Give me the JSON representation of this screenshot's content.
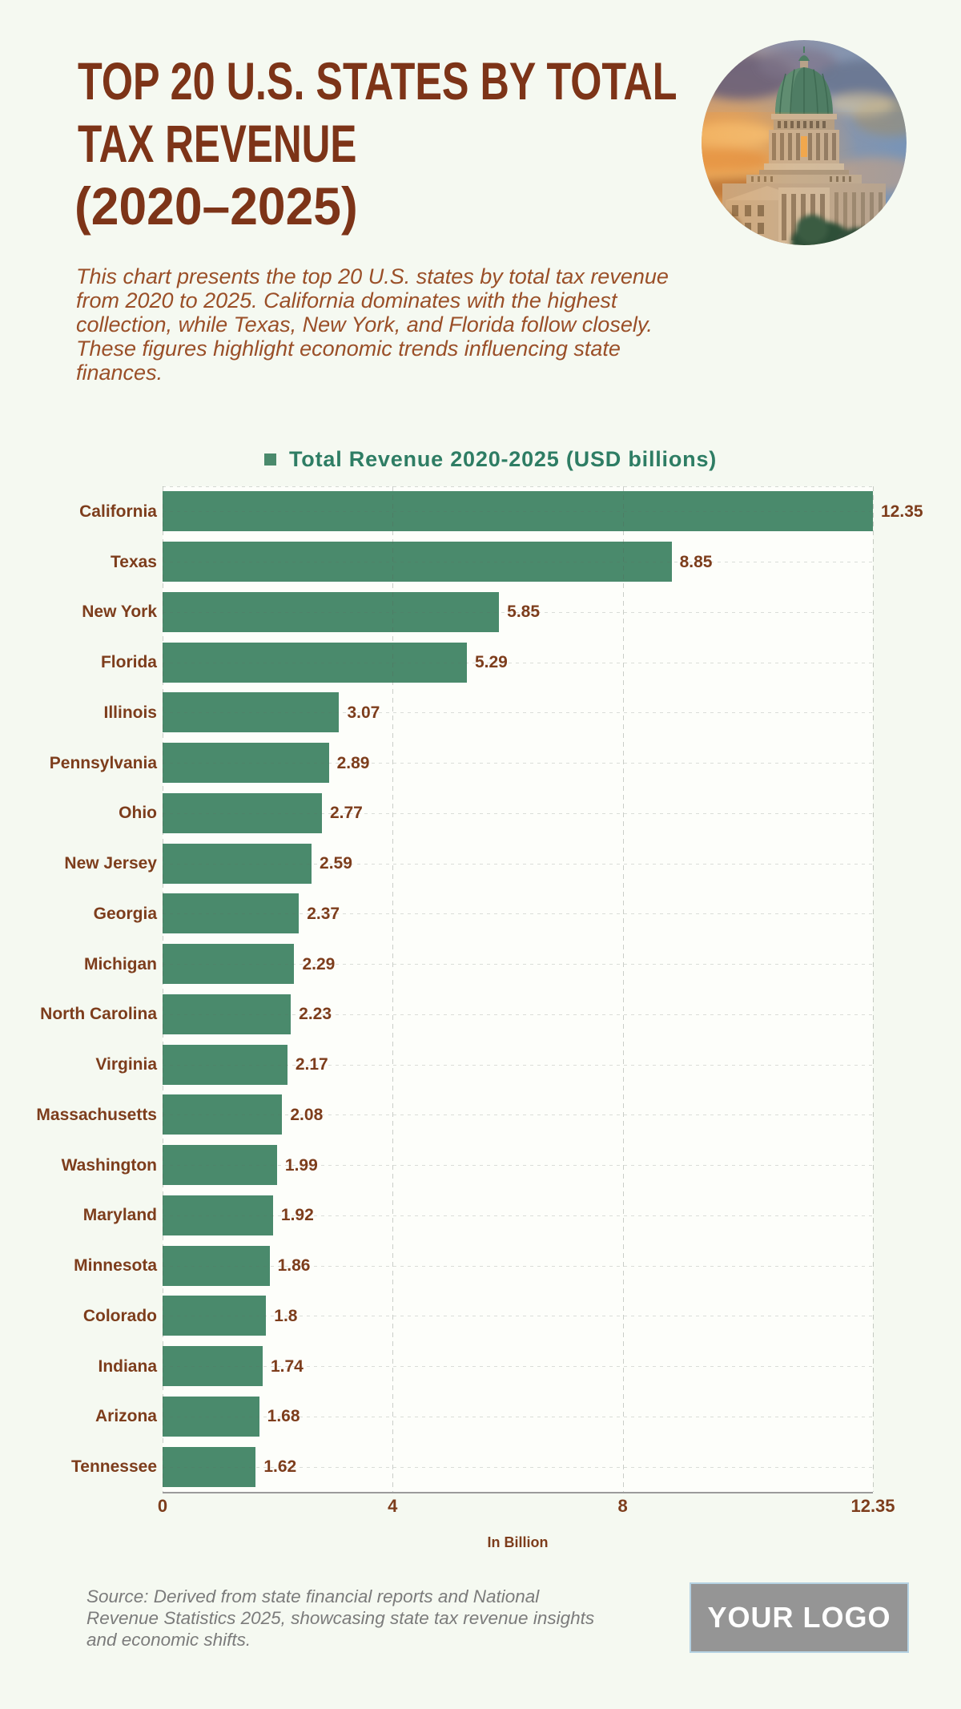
{
  "header": {
    "title_lines": [
      "TOP 20 U.S. STATES BY TOTAL",
      "TAX REVENUE",
      "(2020–2025)"
    ],
    "title_color": "#7d3418",
    "description_lines": [
      "This chart presents the top 20 U.S. states by total tax revenue",
      "from 2020 to 2025. California dominates with the highest",
      "collection, while Texas, New York, and Florida follow closely.",
      "These figures highlight economic trends influencing state",
      "finances."
    ],
    "photo_icon": "capitol-dome-sunset-photo"
  },
  "legend": {
    "marker_color": "#4a8a6c",
    "label": "Total Revenue 2020-2025 (USD billions)"
  },
  "chart_data": {
    "type": "bar",
    "orientation": "horizontal",
    "title": "Total Revenue 2020-2025 (USD billions)",
    "categories": [
      "California",
      "Texas",
      "New York",
      "Florida",
      "Illinois",
      "Pennsylvania",
      "Ohio",
      "New Jersey",
      "Georgia",
      "Michigan",
      "North Carolina",
      "Virginia",
      "Massachusetts",
      "Washington",
      "Maryland",
      "Minnesota",
      "Colorado",
      "Indiana",
      "Arizona",
      "Tennessee"
    ],
    "values": [
      12.35,
      8.85,
      5.85,
      5.29,
      3.07,
      2.89,
      2.77,
      2.59,
      2.37,
      2.29,
      2.23,
      2.17,
      2.08,
      1.99,
      1.92,
      1.86,
      1.8,
      1.74,
      1.68,
      1.62
    ],
    "value_labels": [
      "12.35",
      "8.85",
      "5.85",
      "5.29",
      "3.07",
      "2.89",
      "2.77",
      "2.59",
      "2.37",
      "2.29",
      "2.23",
      "2.17",
      "2.08",
      "1.99",
      "1.92",
      "1.86",
      "1.8",
      "1.74",
      "1.68",
      "1.62"
    ],
    "xlabel": "In Billion",
    "x_ticks": [
      0,
      4,
      8,
      12.35
    ],
    "x_tick_labels": [
      "0",
      "4",
      "8",
      "12.35"
    ],
    "xlim": [
      0,
      12.35
    ],
    "bar_color": "#4a8a6c",
    "grid": true,
    "legend_position": "top"
  },
  "footer": {
    "source_lines": [
      "Source: Derived from state financial reports and National",
      "Revenue Statistics 2025, showcasing state tax revenue insights",
      "and economic shifts."
    ],
    "logo_text": "YOUR LOGO"
  }
}
